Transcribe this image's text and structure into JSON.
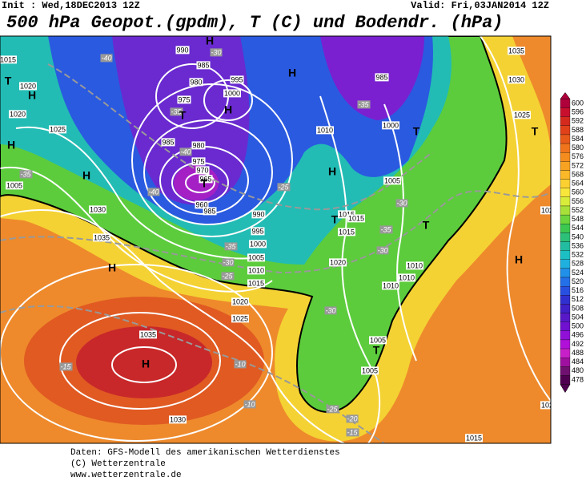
{
  "header": {
    "init": "Init : Wed,18DEC2013 12Z",
    "valid": "Valid: Fri,03JAN2014 12Z",
    "title": "500 hPa Geopot.(gpdm), T (C) und Bodendr. (hPa)"
  },
  "map": {
    "pressure_labels": [
      1015,
      1020,
      1020,
      1025,
      1005,
      1030,
      1035,
      990,
      985,
      980,
      975,
      995,
      1000,
      985,
      980,
      975,
      970,
      965,
      960,
      985,
      990,
      995,
      1000,
      1005,
      1010,
      1015,
      1020,
      1025,
      1035,
      1030,
      1010,
      985,
      1000,
      1005,
      1015,
      1015,
      1015,
      1020,
      1010,
      1010,
      1010,
      1005,
      1005,
      1035,
      1030,
      1025,
      1020,
      1020,
      1015
    ],
    "temperature_labels": [
      -40,
      -30,
      -35,
      -40,
      -40,
      -35,
      -25,
      -35,
      -30,
      -35,
      -30,
      -35,
      -30,
      -25,
      -30,
      -15,
      -10,
      -10,
      -25,
      -20,
      -15
    ],
    "centers": [
      "H",
      "T",
      "H",
      "H",
      "H",
      "T",
      "H",
      "H",
      "T",
      "H",
      "T",
      "T",
      "T",
      "H",
      "H",
      "H",
      "T",
      "T"
    ]
  },
  "colorbar": {
    "ticks": [
      600,
      596,
      592,
      588,
      584,
      580,
      576,
      572,
      568,
      564,
      560,
      556,
      552,
      548,
      544,
      540,
      536,
      532,
      528,
      524,
      520,
      516,
      512,
      508,
      504,
      500,
      496,
      492,
      488,
      484,
      480,
      478
    ],
    "colors": [
      "#b0003c",
      "#c8102e",
      "#d42a1e",
      "#e0401a",
      "#e85a1a",
      "#f0741c",
      "#f58c1e",
      "#f8a222",
      "#fbb828",
      "#fcd030",
      "#f8e63a",
      "#d8ec3a",
      "#a8e03a",
      "#6cd43c",
      "#3cc850",
      "#2cc078",
      "#22bca0",
      "#1cc0c4",
      "#20b0e0",
      "#2090e8",
      "#2470e8",
      "#2850e0",
      "#3030d0",
      "#4020c8",
      "#5818c8",
      "#7010d0",
      "#9010d8",
      "#b010d8",
      "#c820c8",
      "#a010a0",
      "#701070",
      "#500050"
    ]
  },
  "footer": {
    "line1": "Daten: GFS-Modell des amerikanischen Wetterdienstes",
    "line2": "(C) Wetterzentrale",
    "line3": "www.wetterzentrale.de"
  }
}
